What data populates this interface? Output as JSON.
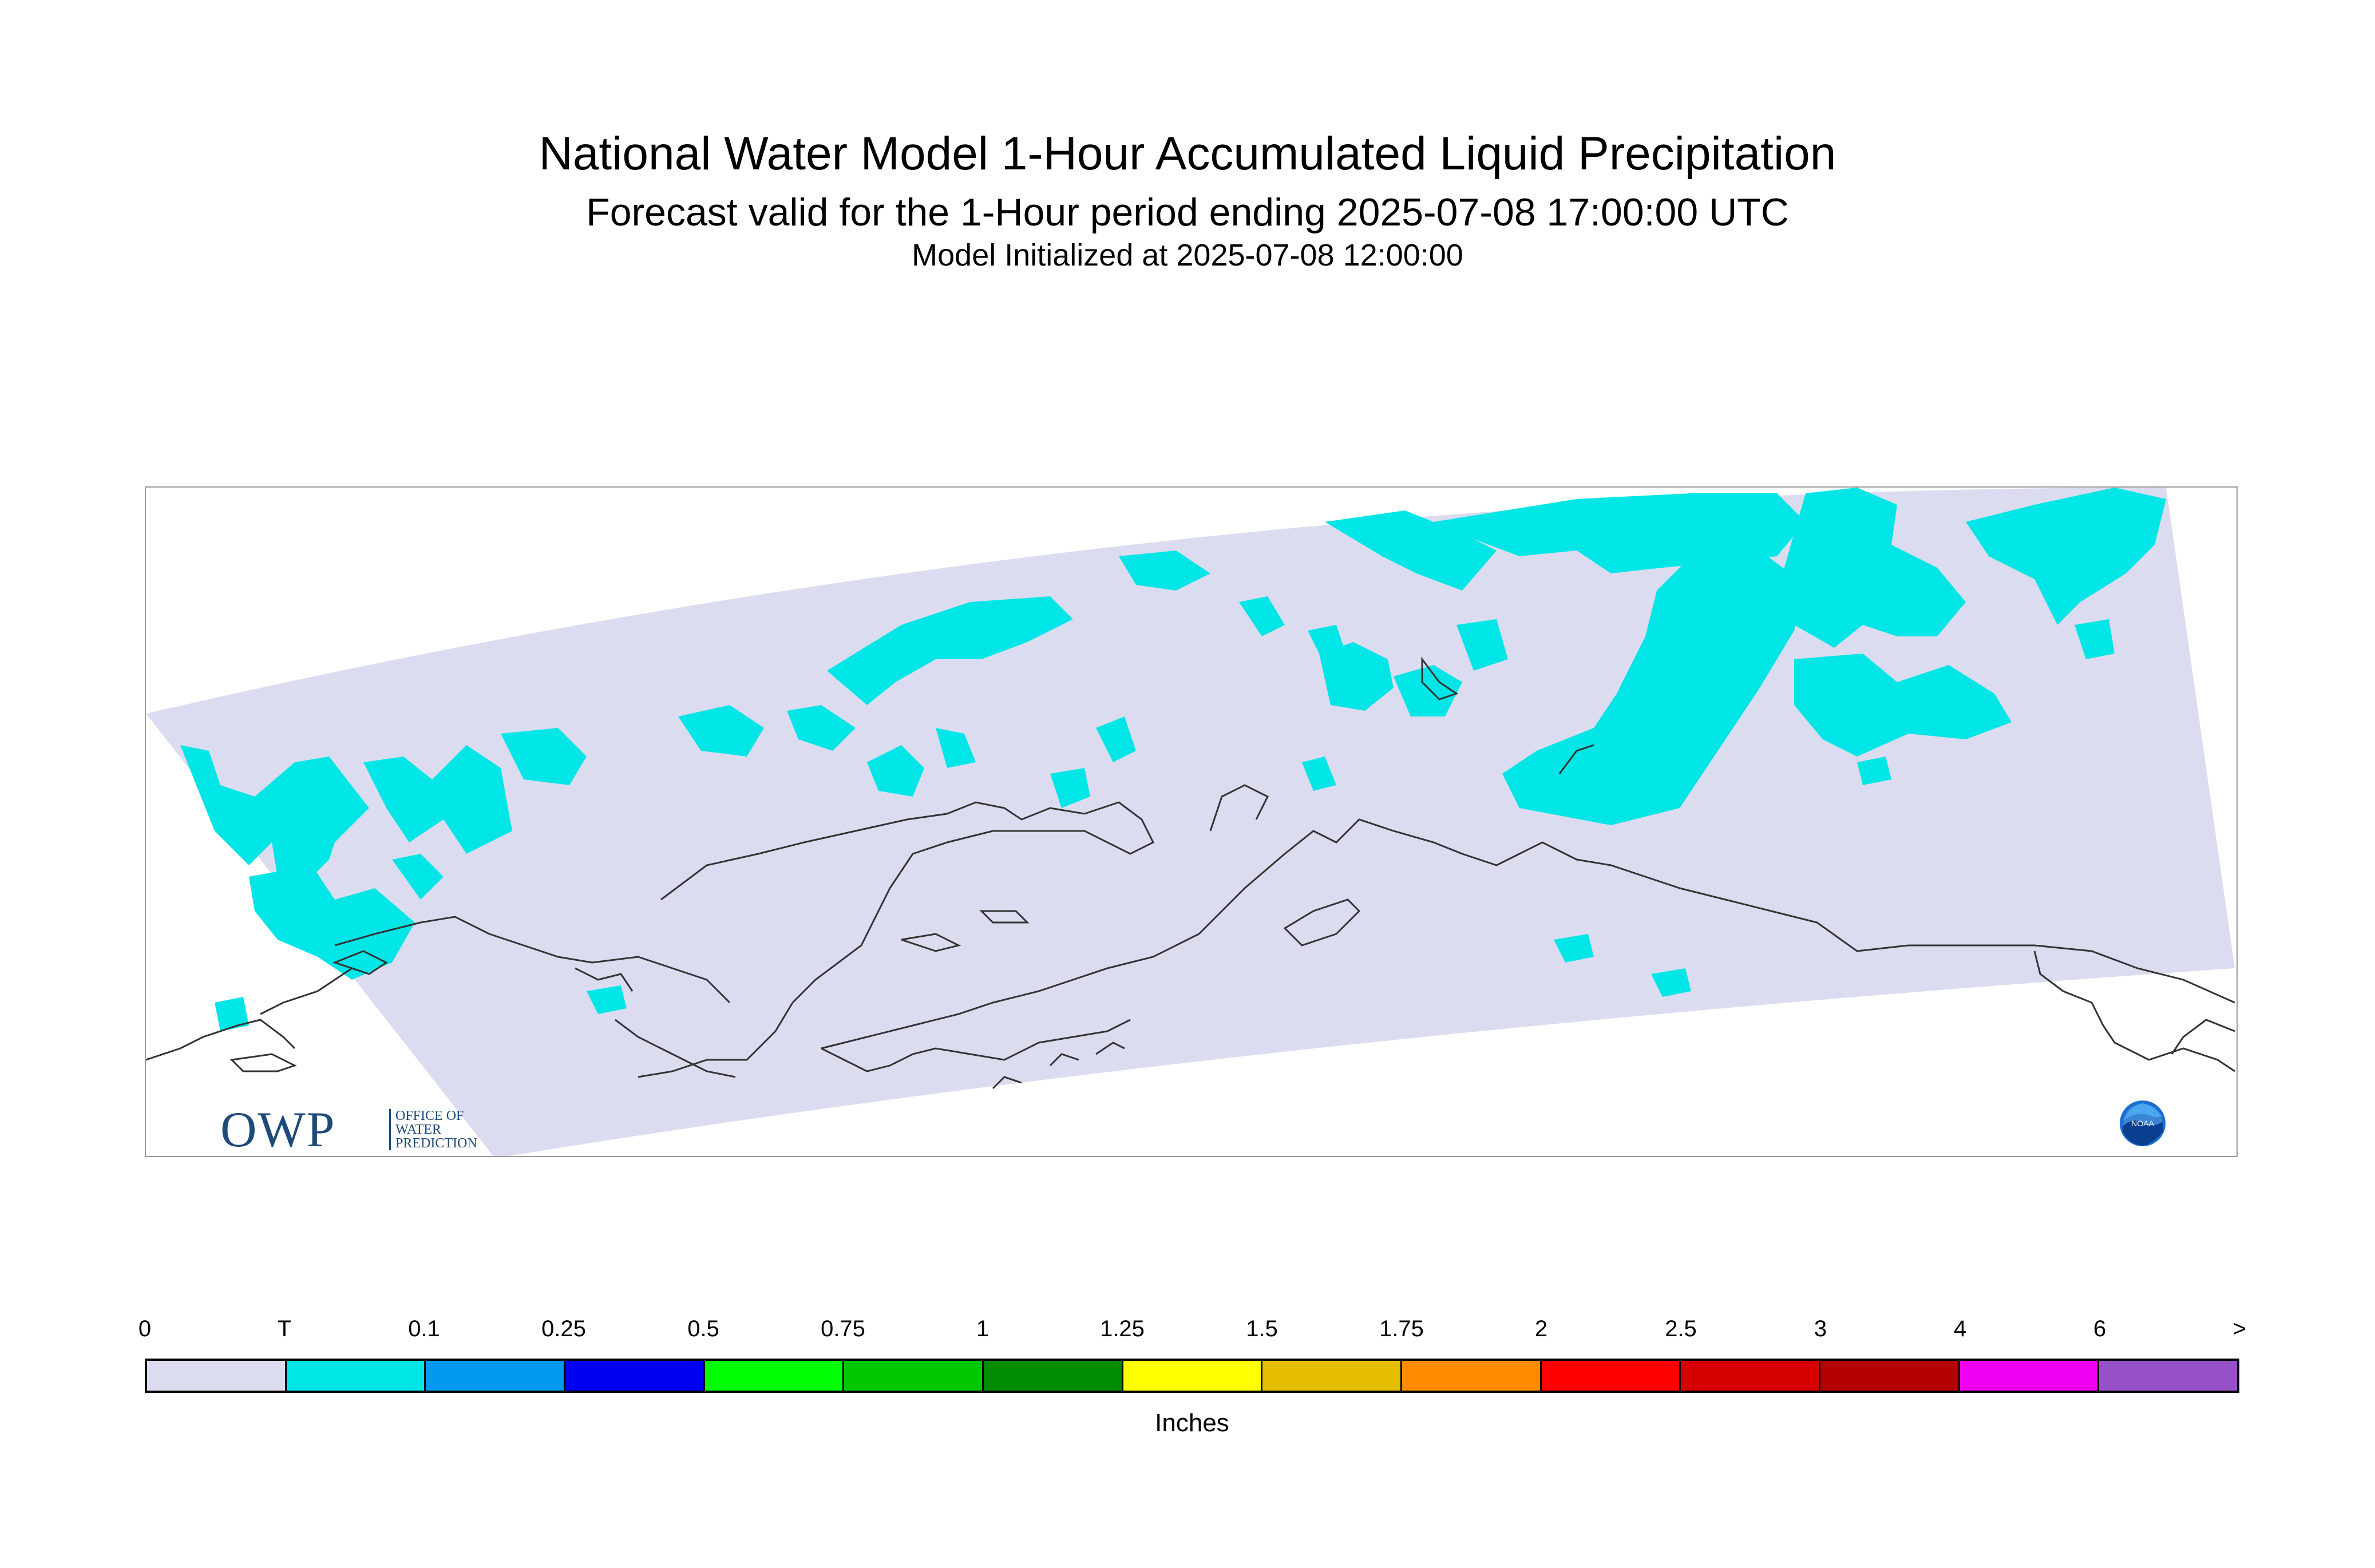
{
  "titles": {
    "main": "National Water Model 1-Hour Accumulated Liquid Precipitation",
    "sub": "Forecast valid for the 1-Hour period ending 2025-07-08 17:00:00 UTC",
    "init": "Model Initialized at 2025-07-08 12:00:00"
  },
  "map": {
    "region": "Alaska",
    "domain_color": "#dcdcf0",
    "precip_color": "#00e6e6",
    "coastline_color": "#333333",
    "frame_color": "#9a9a9a"
  },
  "logos": {
    "owp_big": "OWP",
    "owp_small": [
      "OFFICE OF",
      "WATER",
      "PREDICTION"
    ],
    "noaa": "NOAA"
  },
  "legend": {
    "units": "Inches",
    "tick_labels": [
      "0",
      "T",
      "0.1",
      "0.25",
      "0.5",
      "0.75",
      "1",
      "1.25",
      "1.5",
      "1.75",
      "2",
      "2.5",
      "3",
      "4",
      "6",
      ">"
    ],
    "colors": [
      "#dcdcf0",
      "#00e6e6",
      "#0099f0",
      "#0000f0",
      "#00ff00",
      "#00c800",
      "#008c00",
      "#ffff00",
      "#e6be00",
      "#ff8c00",
      "#ff0000",
      "#d70000",
      "#b40000",
      "#f000f0",
      "#9650c8"
    ]
  }
}
